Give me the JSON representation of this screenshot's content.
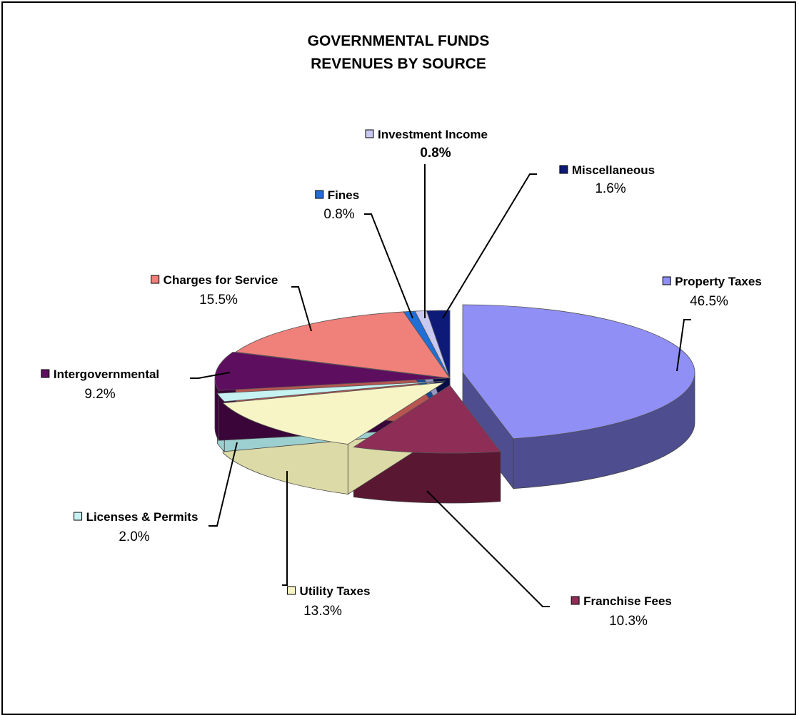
{
  "chart_data": {
    "type": "pie",
    "title": [
      "GOVERNMENTAL FUNDS",
      "REVENUES BY SOURCE"
    ],
    "slices": [
      {
        "name": "Property Taxes",
        "pct_label": "46.5%",
        "value": 46.5,
        "color": "#8F8FF5",
        "dark": "#4D4D8F"
      },
      {
        "name": "Franchise Fees",
        "pct_label": "10.3%",
        "value": 10.3,
        "color": "#8E2D55",
        "dark": "#5A1732"
      },
      {
        "name": "Utility Taxes",
        "pct_label": "13.3%",
        "value": 13.3,
        "color": "#F7F5C6",
        "dark": "#DCDAA6"
      },
      {
        "name": "Licenses & Permits",
        "pct_label": "2.0%",
        "value": 2.0,
        "color": "#C6F2F2",
        "dark": "#9CCFCF"
      },
      {
        "name": "Intergovernmental",
        "pct_label": "9.2%",
        "value": 9.2,
        "color": "#5E0E5E",
        "dark": "#3A063A"
      },
      {
        "name": "Charges for Service",
        "pct_label": "15.5%",
        "value": 15.5,
        "color": "#F0807A",
        "dark": "#B85550"
      },
      {
        "name": "Fines",
        "pct_label": "0.8%",
        "value": 0.8,
        "color": "#1F6FD6",
        "dark": "#124A94"
      },
      {
        "name": "Investment Income",
        "pct_label": "0.8%",
        "value": 0.8,
        "color": "#C8C8F2",
        "dark": "#9595C2",
        "pct_bold": true
      },
      {
        "name": "Miscellaneous",
        "pct_label": "1.6%",
        "value": 1.6,
        "color": "#0E1A78",
        "dark": "#070E46"
      }
    ],
    "legend": "none",
    "labels": "outside with leader lines"
  }
}
